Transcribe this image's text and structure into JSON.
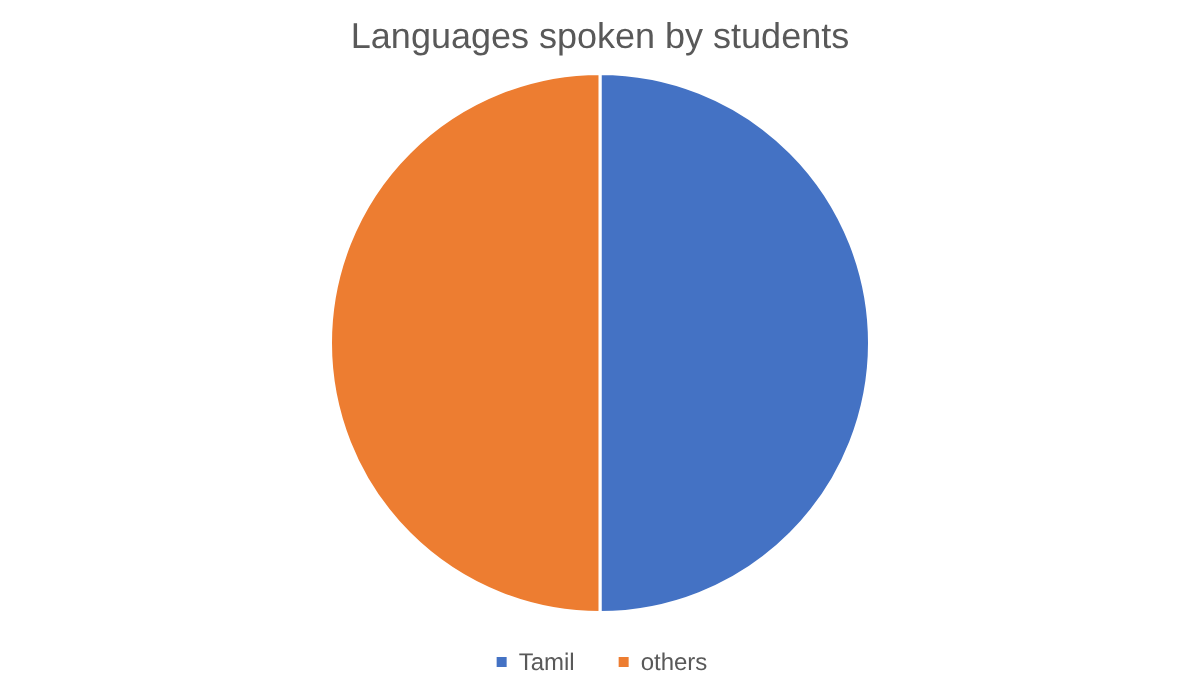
{
  "chart_data": {
    "type": "pie",
    "title": "Languages spoken by students",
    "categories": [
      "Tamil",
      "others"
    ],
    "values": [
      50,
      50
    ],
    "colors": [
      "#4472c4",
      "#ed7d31"
    ],
    "legend": "bottom"
  }
}
